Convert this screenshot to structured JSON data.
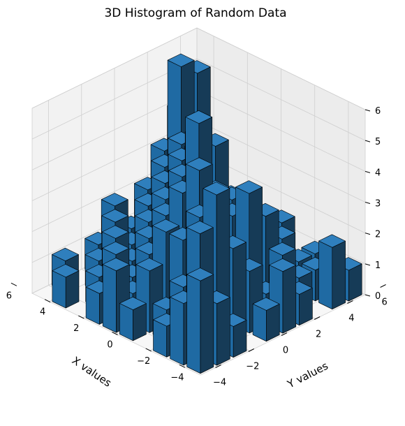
{
  "chart_data": {
    "type": "bar3d",
    "title": "3D Histogram of Random Data",
    "xlabel": "X values",
    "ylabel": "Y values",
    "zlabel": "",
    "xlim": [
      -5,
      5
    ],
    "ylim": [
      -5,
      5
    ],
    "zlim": [
      0,
      6
    ],
    "x_ticks": [
      -4,
      -2,
      0,
      2,
      4,
      6
    ],
    "y_ticks": [
      -4,
      -2,
      0,
      2,
      4,
      6
    ],
    "z_ticks": [
      0,
      1,
      2,
      3,
      4,
      5,
      6
    ],
    "bin_edges": [
      -5,
      -4,
      -3,
      -2,
      -1,
      0,
      1,
      2,
      3,
      4,
      5
    ],
    "grid": true,
    "bar_color": "#1f77b4",
    "edge_color": "#000000",
    "counts": [
      [
        3,
        2,
        1,
        0,
        1,
        2,
        1,
        0,
        2,
        1
      ],
      [
        2,
        4,
        5,
        3,
        2,
        1,
        2,
        1,
        1,
        0
      ],
      [
        1,
        2,
        4,
        3,
        2,
        4,
        3,
        2,
        1,
        1
      ],
      [
        0,
        1,
        3,
        5,
        4,
        3,
        2,
        1,
        2,
        0
      ],
      [
        1,
        2,
        3,
        4,
        6,
        5,
        3,
        2,
        1,
        1
      ],
      [
        2,
        1,
        2,
        3,
        4,
        5,
        3,
        2,
        1,
        0
      ],
      [
        1,
        2,
        1,
        2,
        3,
        4,
        4,
        3,
        2,
        1
      ],
      [
        0,
        1,
        2,
        1,
        2,
        3,
        4,
        3,
        2,
        1
      ],
      [
        1,
        0,
        1,
        2,
        1,
        2,
        3,
        6,
        2,
        1
      ],
      [
        0,
        1,
        0,
        1,
        2,
        1,
        2,
        3,
        4,
        5
      ]
    ]
  }
}
